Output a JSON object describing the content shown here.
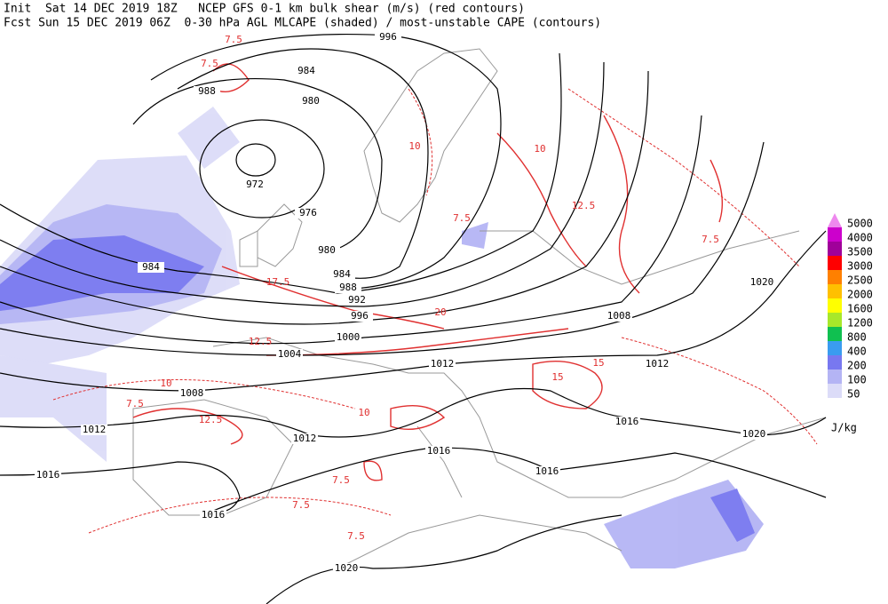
{
  "header": {
    "init": "Init  Sat 14 DEC 2019 18Z   NCEP GFS 0-1 km bulk shear (m/s) (red contours)",
    "fcst": "Fcst Sun 15 DEC 2019 06Z  0-30 hPa AGL MLCAPE (shaded) / most-unstable CAPE (contours)"
  },
  "legend": {
    "unit": "J/kg",
    "levels": [
      {
        "label": "5000",
        "color": "#ee88ee"
      },
      {
        "label": "4000",
        "color": "#cc00cc"
      },
      {
        "label": "3500",
        "color": "#a0009a"
      },
      {
        "label": "3000",
        "color": "#ff0000"
      },
      {
        "label": "2500",
        "color": "#ff8000"
      },
      {
        "label": "2000",
        "color": "#ffc000"
      },
      {
        "label": "1600",
        "color": "#ffff00"
      },
      {
        "label": "1200",
        "color": "#a8e82a"
      },
      {
        "label": "800",
        "color": "#10c050"
      },
      {
        "label": "400",
        "color": "#3a9cf0"
      },
      {
        "label": "200",
        "color": "#7878f0"
      },
      {
        "label": "100",
        "color": "#b4b4f4"
      },
      {
        "label": "50",
        "color": "#dcdcf8"
      }
    ]
  },
  "map": {
    "isobar_labels": [
      "996",
      "984",
      "988",
      "980",
      "972",
      "976",
      "980",
      "984",
      "984",
      "988",
      "992",
      "996",
      "1000",
      "1004",
      "1008",
      "1008",
      "1012",
      "1012",
      "1012",
      "1012",
      "1016",
      "1016",
      "1016",
      "1016",
      "1016",
      "1020",
      "1020",
      "1020"
    ],
    "shear_labels": [
      "7.5",
      "7.5",
      "10",
      "12.5",
      "15",
      "17.5",
      "20",
      "12.5",
      "7.5",
      "10",
      "7.5",
      "7.5",
      "7.5",
      "15",
      "7.5",
      "10",
      "12.5",
      "10",
      "7.5"
    ]
  }
}
